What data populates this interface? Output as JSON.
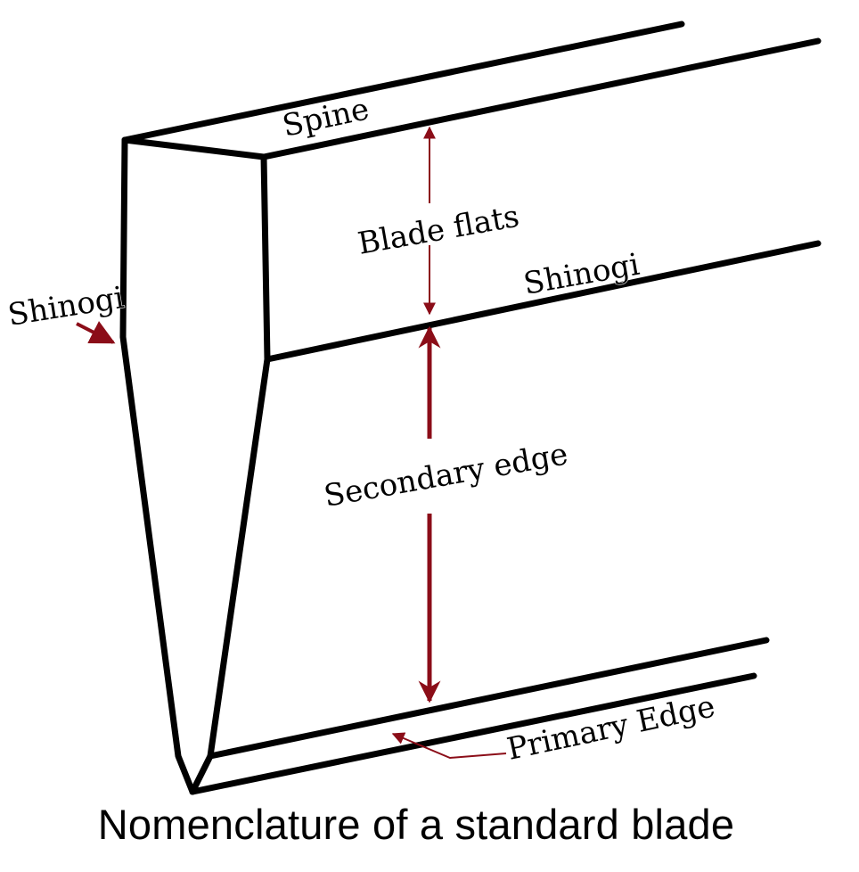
{
  "diagram": {
    "labels": {
      "spine": "Spine",
      "blade_flats": "Blade flats",
      "shinogi_right": "Shinogi",
      "shinogi_left": "Shinogi",
      "secondary_edge": "Secondary edge",
      "primary_edge": "Primary Edge"
    },
    "caption": "Nomenclature of a standard blade",
    "colors": {
      "outline": "#000000",
      "arrow": "#8b0d18",
      "background": "#ffffff"
    }
  }
}
